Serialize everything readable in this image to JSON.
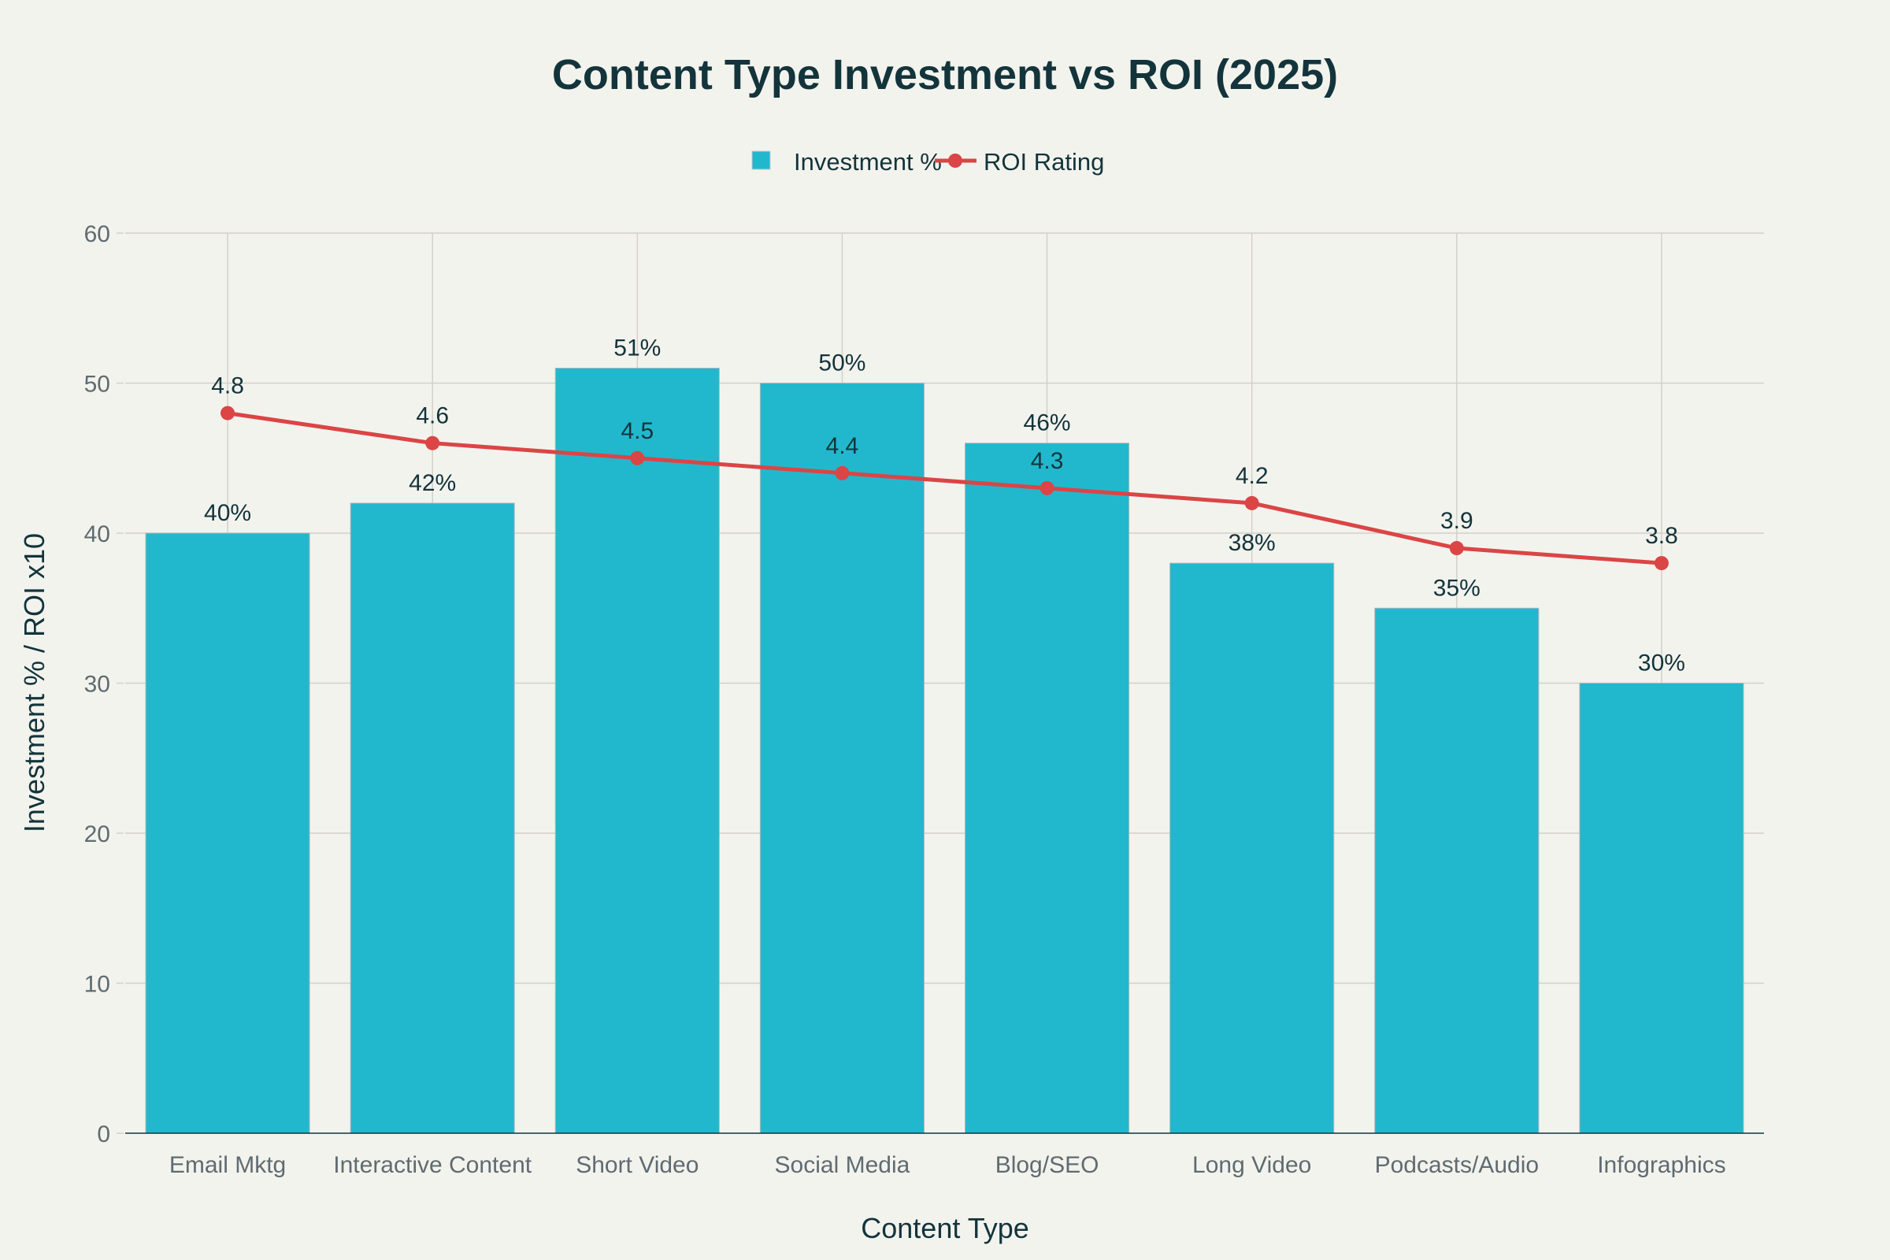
{
  "chart_data": {
    "type": "bar",
    "title": "Content Type Investment vs ROI (2025)",
    "xlabel": "Content Type",
    "ylabel": "Investment % / ROI x10",
    "ylim": [
      0,
      60
    ],
    "yticks": [
      "0",
      "10",
      "20",
      "30",
      "40",
      "50",
      "60"
    ],
    "grid": true,
    "legend_position": "top-center",
    "categories": [
      "Email Mktg",
      "Interactive Content",
      "Short Video",
      "Social Media",
      "Blog/SEO",
      "Long Video",
      "Podcasts/Audio",
      "Infographics"
    ],
    "series": [
      {
        "name": "Investment %",
        "type": "bar",
        "color": "#21b8cd",
        "values": [
          40,
          42,
          51,
          50,
          46,
          38,
          35,
          30
        ],
        "labels": [
          "40%",
          "42%",
          "51%",
          "50%",
          "46%",
          "38%",
          "35%",
          "30%"
        ]
      },
      {
        "name": "ROI Rating",
        "type": "line",
        "color": "#db4545",
        "values": [
          48,
          46,
          45,
          44,
          43,
          42,
          39,
          38
        ],
        "labels": [
          "4.8",
          "4.6",
          "4.5",
          "4.4",
          "4.3",
          "4.2",
          "3.9",
          "3.8"
        ]
      }
    ]
  }
}
